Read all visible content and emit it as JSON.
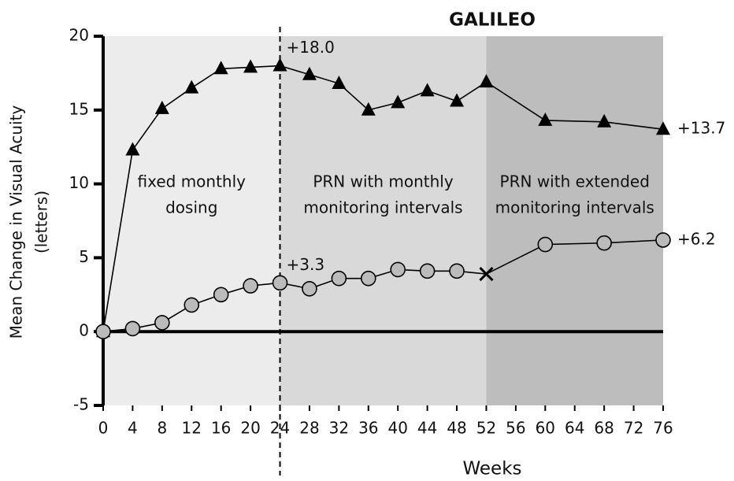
{
  "chart_data": {
    "type": "line",
    "title": "GALILEO",
    "ylabel": [
      "Mean Change in Visual Acuity",
      "(letters)"
    ],
    "xlabel": "Weeks",
    "x": [
      0,
      4,
      8,
      12,
      16,
      20,
      24,
      28,
      32,
      36,
      40,
      44,
      48,
      52,
      60,
      68,
      76
    ],
    "series": [
      {
        "marker": "triangle",
        "color": "#000000",
        "values": [
          0,
          12.3,
          15.1,
          16.5,
          17.8,
          17.9,
          18.0,
          17.4,
          16.8,
          15.0,
          15.5,
          16.3,
          15.6,
          16.9,
          14.3,
          14.2,
          13.7
        ]
      },
      {
        "marker": "circle",
        "color": "#bbbbbb",
        "cross_x": 52,
        "values": [
          0,
          0.2,
          0.6,
          1.8,
          2.5,
          3.1,
          3.3,
          2.9,
          3.6,
          3.6,
          4.2,
          4.1,
          4.1,
          3.9,
          5.9,
          6.0,
          6.2
        ]
      }
    ],
    "regions": [
      {
        "from": 0,
        "to": 24,
        "color": "#ececec",
        "label": [
          "fixed monthly",
          "dosing"
        ]
      },
      {
        "from": 24,
        "to": 52,
        "color": "#d9d9d9",
        "label": [
          "PRN with monthly",
          "monitoring intervals"
        ]
      },
      {
        "from": 52,
        "to": 76,
        "color": "#bdbdbd",
        "label": [
          "PRN with extended",
          "monitoring intervals"
        ]
      }
    ],
    "dashed_line_x": 24,
    "annotations": [
      {
        "text": "+18.0",
        "x": 24,
        "y": 18.0
      },
      {
        "text": "+13.7",
        "x": 76,
        "y": 13.7
      },
      {
        "text": "+3.3",
        "x": 24,
        "y": 3.3
      },
      {
        "text": "+6.2",
        "x": 76,
        "y": 6.2
      }
    ],
    "xlim": [
      0,
      76
    ],
    "ylim": [
      -5,
      20
    ],
    "xticks": [
      0,
      4,
      8,
      12,
      16,
      20,
      24,
      28,
      32,
      36,
      40,
      44,
      48,
      52,
      56,
      60,
      64,
      68,
      72,
      76
    ],
    "yticks": [
      -5,
      0,
      5,
      10,
      15,
      20
    ]
  }
}
